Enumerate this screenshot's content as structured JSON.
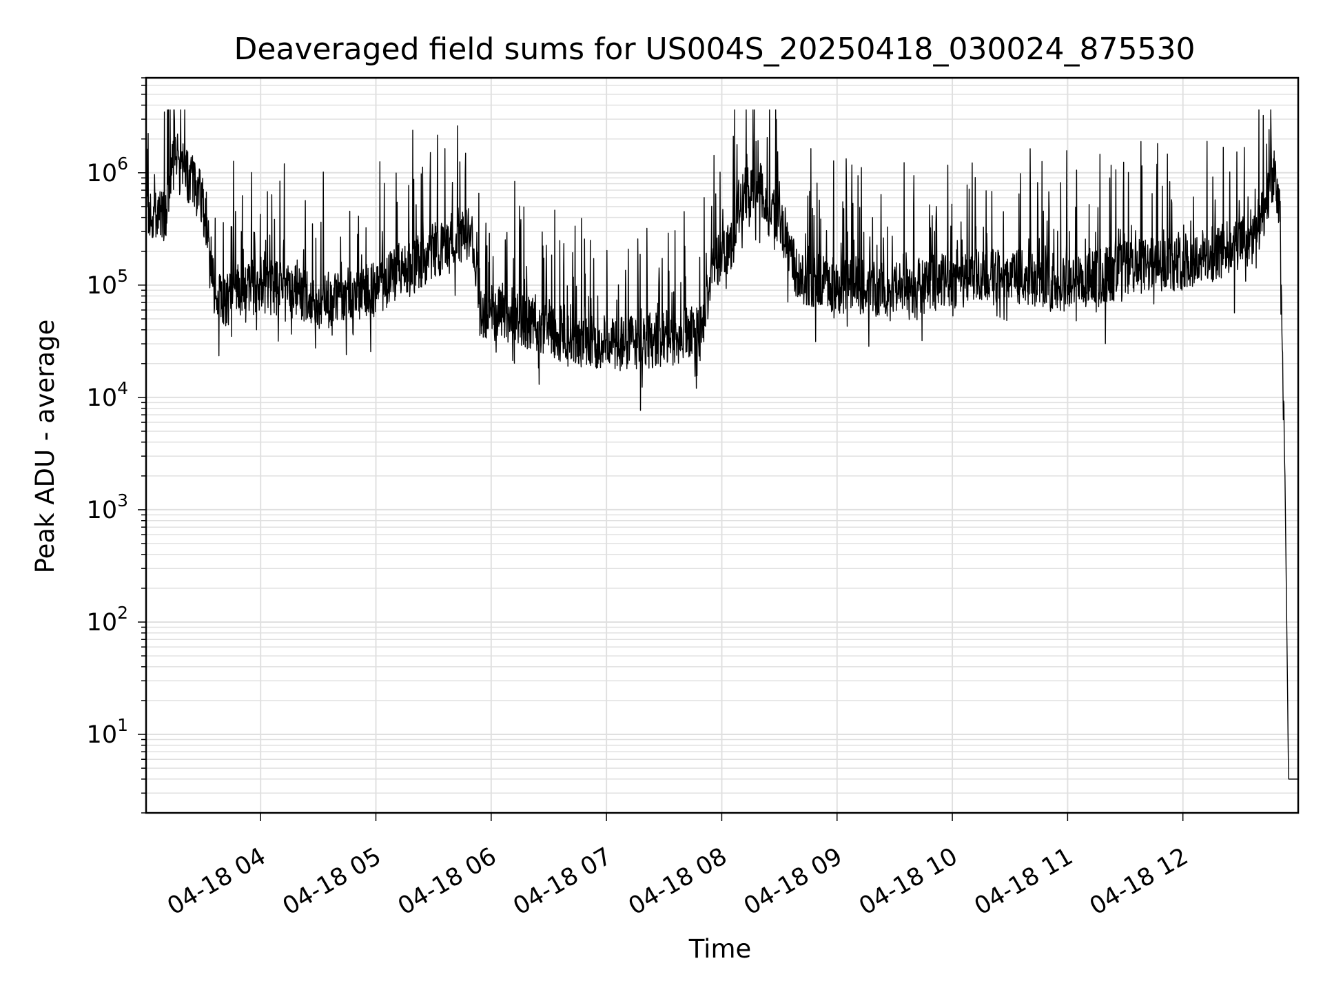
{
  "chart_data": {
    "type": "line",
    "title": "Deaveraged field sums for US004S_20250418_030024_875530",
    "xlabel": "Time",
    "ylabel": "Peak ADU - average",
    "yscale": "log",
    "ylim": [
      2,
      7000000
    ],
    "xlim": [
      "2025-04-18 03:00:24",
      "2025-04-18 13:00:00"
    ],
    "grid": true,
    "line_color": "#000000",
    "grid_color": "#e0e0e0",
    "x_ticks": [
      {
        "value": "2025-04-18 04:00",
        "label": "04-18 04"
      },
      {
        "value": "2025-04-18 05:00",
        "label": "04-18 05"
      },
      {
        "value": "2025-04-18 06:00",
        "label": "04-18 06"
      },
      {
        "value": "2025-04-18 07:00",
        "label": "04-18 07"
      },
      {
        "value": "2025-04-18 08:00",
        "label": "04-18 08"
      },
      {
        "value": "2025-04-18 09:00",
        "label": "04-18 09"
      },
      {
        "value": "2025-04-18 10:00",
        "label": "04-18 10"
      },
      {
        "value": "2025-04-18 11:00",
        "label": "04-18 11"
      },
      {
        "value": "2025-04-18 12:00",
        "label": "04-18 12"
      }
    ],
    "y_ticks": [
      {
        "value": 10,
        "base": "10",
        "exp": "1"
      },
      {
        "value": 100,
        "base": "10",
        "exp": "2"
      },
      {
        "value": 1000,
        "base": "10",
        "exp": "3"
      },
      {
        "value": 10000,
        "base": "10",
        "exp": "4"
      },
      {
        "value": 100000,
        "base": "10",
        "exp": "5"
      },
      {
        "value": 1000000,
        "base": "10",
        "exp": "6"
      }
    ],
    "series": [
      {
        "x": [
          "2025-04-18 03:00:24",
          "2025-04-18 03:06",
          "2025-04-18 03:10",
          "2025-04-18 03:15",
          "2025-04-18 03:20",
          "2025-04-18 03:25",
          "2025-04-18 03:30",
          "2025-04-18 03:35",
          "2025-04-18 03:40",
          "2025-04-18 03:45",
          "2025-04-18 03:50",
          "2025-04-18 04:00",
          "2025-04-18 04:15",
          "2025-04-18 04:30",
          "2025-04-18 04:45",
          "2025-04-18 05:00",
          "2025-04-18 05:10",
          "2025-04-18 05:20",
          "2025-04-18 05:30",
          "2025-04-18 05:40",
          "2025-04-18 05:50",
          "2025-04-18 05:55",
          "2025-04-18 06:05",
          "2025-04-18 06:20",
          "2025-04-18 06:40",
          "2025-04-18 07:00",
          "2025-04-18 07:20",
          "2025-04-18 07:40",
          "2025-04-18 07:50",
          "2025-04-18 07:55",
          "2025-04-18 08:05",
          "2025-04-18 08:10",
          "2025-04-18 08:20",
          "2025-04-18 08:30",
          "2025-04-18 08:40",
          "2025-04-18 09:00",
          "2025-04-18 09:30",
          "2025-04-18 10:00",
          "2025-04-18 10:30",
          "2025-04-18 11:00",
          "2025-04-18 11:30",
          "2025-04-18 12:00",
          "2025-04-18 12:20",
          "2025-04-18 12:35",
          "2025-04-18 12:42",
          "2025-04-18 12:45",
          "2025-04-18 12:47",
          "2025-04-18 12:50",
          "2025-04-18 12:53",
          "2025-04-18 12:55",
          "2025-04-18 12:56",
          "2025-04-18 13:00"
        ],
        "y": [
          400000,
          450000,
          400000,
          1300000,
          1000000,
          800000,
          600000,
          100000,
          70000,
          80000,
          90000,
          100000,
          90000,
          70000,
          80000,
          90000,
          130000,
          150000,
          200000,
          250000,
          300000,
          60000,
          55000,
          45000,
          35000,
          30000,
          32000,
          35000,
          40000,
          150000,
          250000,
          600000,
          700000,
          400000,
          120000,
          100000,
          90000,
          110000,
          120000,
          100000,
          140000,
          160000,
          200000,
          250000,
          400000,
          700000,
          1000000,
          500000,
          3000,
          4,
          4,
          4
        ]
      }
    ]
  }
}
